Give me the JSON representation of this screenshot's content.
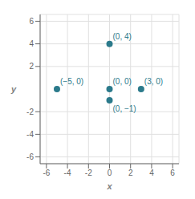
{
  "chart_data": {
    "type": "scatter",
    "x": [
      -5,
      3,
      0,
      0,
      0
    ],
    "values": [
      0,
      0,
      0,
      -1,
      4
    ],
    "value_labels": [
      "(−5, 0)",
      "(3, 0)",
      "(0, 0)",
      "(0, −1)",
      "(0, 4)"
    ],
    "data_labels": true,
    "color": "#2b7a8b",
    "xlabel": "x",
    "ylabel": "y",
    "xlim": [
      -6.6,
      6.6
    ],
    "ylim": [
      -6.6,
      6.6
    ],
    "xticks": [
      -6,
      -4,
      -2,
      0,
      2,
      4,
      6
    ],
    "yticks": [
      -6,
      -4,
      -2,
      2,
      4,
      6
    ],
    "grid": true
  }
}
